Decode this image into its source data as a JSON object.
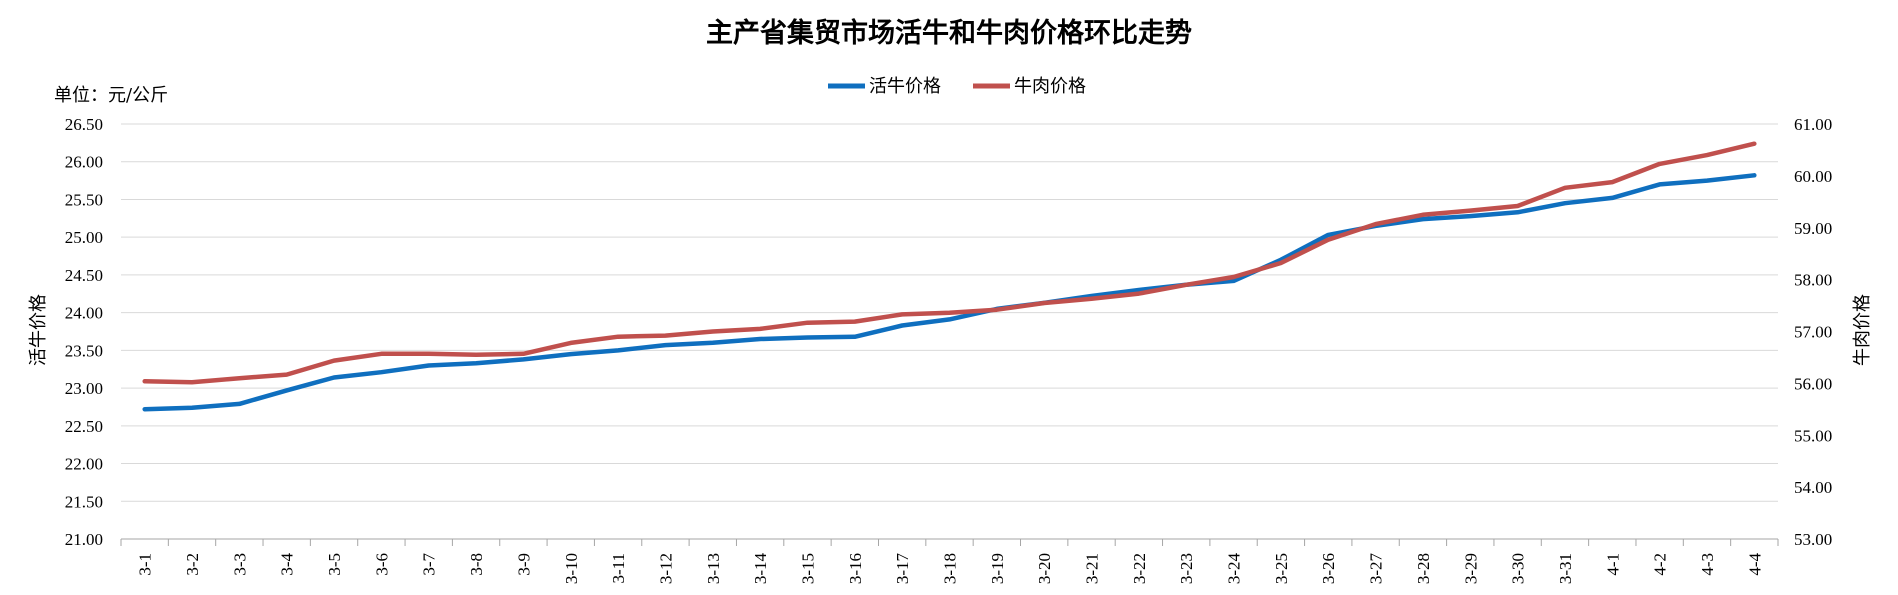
{
  "chart_data": {
    "type": "line",
    "title": "主产省集贸市场活牛和牛肉价格环比走势",
    "unit_label": "单位：元/公斤",
    "ylabel_left": "活牛价格",
    "ylabel_right": "牛肉价格",
    "legend_position": "top-center",
    "grid": true,
    "categories": [
      "3-1",
      "3-2",
      "3-3",
      "3-4",
      "3-5",
      "3-6",
      "3-7",
      "3-8",
      "3-9",
      "3-10",
      "3-11",
      "3-12",
      "3-13",
      "3-14",
      "3-15",
      "3-16",
      "3-17",
      "3-18",
      "3-19",
      "3-20",
      "3-21",
      "3-22",
      "3-23",
      "3-24",
      "3-25",
      "3-26",
      "3-27",
      "3-28",
      "3-29",
      "3-30",
      "3-31",
      "4-1",
      "4-2",
      "4-3",
      "4-4"
    ],
    "left_axis": {
      "ylim": [
        21.0,
        26.5
      ],
      "ticks": [
        "21.00",
        "21.50",
        "22.00",
        "22.50",
        "23.00",
        "23.50",
        "24.00",
        "24.50",
        "25.00",
        "25.50",
        "26.00",
        "26.50"
      ]
    },
    "right_axis": {
      "ylim": [
        53.0,
        61.0
      ],
      "ticks": [
        "53.00",
        "54.00",
        "55.00",
        "56.00",
        "57.00",
        "58.00",
        "59.00",
        "60.00",
        "61.00"
      ]
    },
    "series": [
      {
        "name": "活牛价格",
        "axis": "left",
        "color": "#0f6fbf",
        "values": [
          22.72,
          22.74,
          22.79,
          22.97,
          23.14,
          23.21,
          23.3,
          23.33,
          23.38,
          23.45,
          23.5,
          23.57,
          23.6,
          23.65,
          23.67,
          23.68,
          23.83,
          23.91,
          24.05,
          24.13,
          24.22,
          24.3,
          24.37,
          24.42,
          24.7,
          25.03,
          25.15,
          25.24,
          25.28,
          25.33,
          25.45,
          25.52,
          25.7,
          25.75,
          25.82
        ]
      },
      {
        "name": "牛肉价格",
        "axis": "right",
        "color": "#c0504d",
        "values": [
          56.04,
          56.02,
          56.1,
          56.17,
          56.44,
          56.57,
          56.57,
          56.55,
          56.57,
          56.78,
          56.9,
          56.92,
          57.0,
          57.05,
          57.17,
          57.19,
          57.33,
          57.36,
          57.42,
          57.55,
          57.63,
          57.73,
          57.9,
          58.05,
          58.32,
          58.77,
          59.07,
          59.25,
          59.33,
          59.42,
          59.77,
          59.88,
          60.23,
          60.4,
          60.62
        ]
      }
    ]
  }
}
